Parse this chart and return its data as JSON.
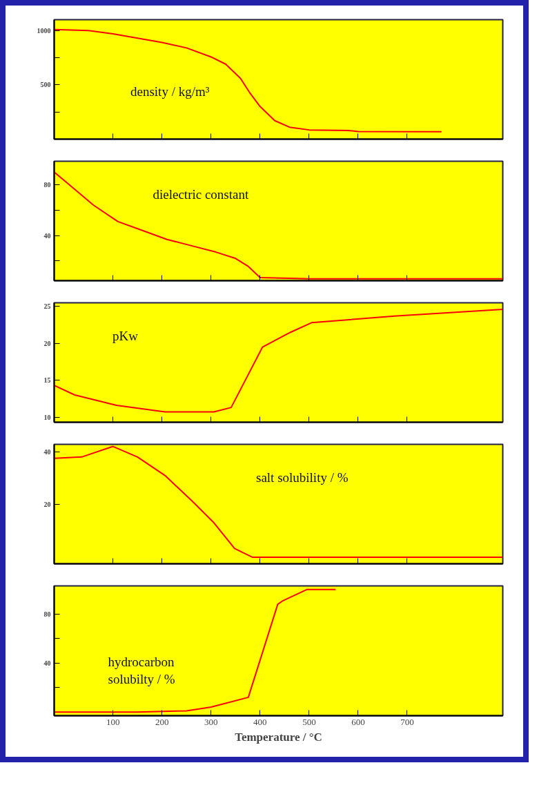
{
  "chart_data": [
    {
      "type": "line",
      "annotations": [
        "density / kg/m³"
      ],
      "x": [
        -20,
        50,
        100,
        200,
        250,
        300,
        330,
        360,
        380,
        400,
        430,
        460,
        500,
        580,
        600,
        770
      ],
      "series": [
        {
          "color": "#ff0000",
          "values": [
            1010,
            1000,
            970,
            890,
            840,
            757,
            690,
            560,
            420,
            300,
            170,
            110,
            85,
            80,
            70,
            68
          ]
        }
      ],
      "xlim": [
        -20,
        895
      ],
      "ylim": [
        0,
        1100
      ],
      "xticks": [
        100,
        200,
        300,
        400,
        500,
        600,
        700
      ],
      "yticks": [
        1000,
        {
          "value": 750,
          "label": null
        },
        500,
        {
          "value": 250,
          "label": null
        }
      ],
      "tick_labels": "y",
      "grid": false
    },
    {
      "type": "line",
      "annotations": [
        "dielectric constant"
      ],
      "x": [
        -20,
        20,
        60,
        110,
        160,
        210,
        260,
        310,
        350,
        375,
        400,
        500,
        895
      ],
      "series": [
        {
          "color": "#ff0000",
          "values": [
            90,
            77,
            64,
            51,
            44,
            37,
            32,
            27,
            22,
            16,
            7,
            6,
            6
          ]
        }
      ],
      "xlim": [
        -20,
        895
      ],
      "ylim": [
        4.5,
        98.5
      ],
      "xticks": [
        100,
        200,
        300,
        400,
        500,
        600,
        700
      ],
      "yticks": [
        80,
        {
          "value": 60,
          "label": null
        },
        40,
        {
          "value": 20,
          "label": null
        }
      ],
      "tick_labels": "y",
      "grid": false
    },
    {
      "type": "line",
      "annotations": [
        "pKw"
      ],
      "x": [
        -20,
        22,
        107,
        206,
        306,
        341,
        405,
        462,
        505,
        674,
        895
      ],
      "series": [
        {
          "color": "#ff0000",
          "values": [
            14.3,
            13,
            11.6,
            10.7,
            10.7,
            11.3,
            19.5,
            21.5,
            22.8,
            23.7,
            24.6
          ]
        }
      ],
      "xlim": [
        -20,
        895
      ],
      "ylim": [
        9.3,
        25.5
      ],
      "xticks": [
        100,
        200,
        300,
        400,
        500,
        600,
        700
      ],
      "yticks": [
        25,
        20,
        15,
        10
      ],
      "tick_labels": "y",
      "grid": false
    },
    {
      "type": "line",
      "annotations": [
        "salt solubility / %"
      ],
      "x": [
        -20,
        36,
        100,
        150,
        206,
        263,
        306,
        348,
        384,
        895
      ],
      "series": [
        {
          "color": "#ff0000",
          "values": [
            37.5,
            38,
            42,
            38,
            31,
            21,
            13,
            3.3,
            0,
            0
          ]
        }
      ],
      "xlim": [
        -20,
        895
      ],
      "ylim": [
        -2.5,
        42.8
      ],
      "xticks": [
        100,
        200,
        300,
        400,
        500,
        600,
        700
      ],
      "yticks": [
        40,
        20
      ],
      "tick_labels": "y",
      "grid": false
    },
    {
      "type": "line",
      "annotations": [
        "hydrocarbon\nsolubilty / %"
      ],
      "xlabel": "Temperature / °C",
      "x": [
        -20,
        150,
        250,
        300,
        376,
        436,
        447,
        495,
        554
      ],
      "series": [
        {
          "color": "#ff0000",
          "values": [
            0,
            0,
            1,
            4,
            12,
            88,
            91,
            100,
            100
          ]
        }
      ],
      "xlim": [
        -20,
        895
      ],
      "ylim": [
        -3,
        103
      ],
      "xticks": [
        100,
        200,
        300,
        400,
        500,
        600,
        700
      ],
      "yticks": [
        80,
        {
          "value": 60,
          "label": null
        },
        40,
        {
          "value": 20,
          "label": null
        }
      ],
      "grid": false
    }
  ]
}
